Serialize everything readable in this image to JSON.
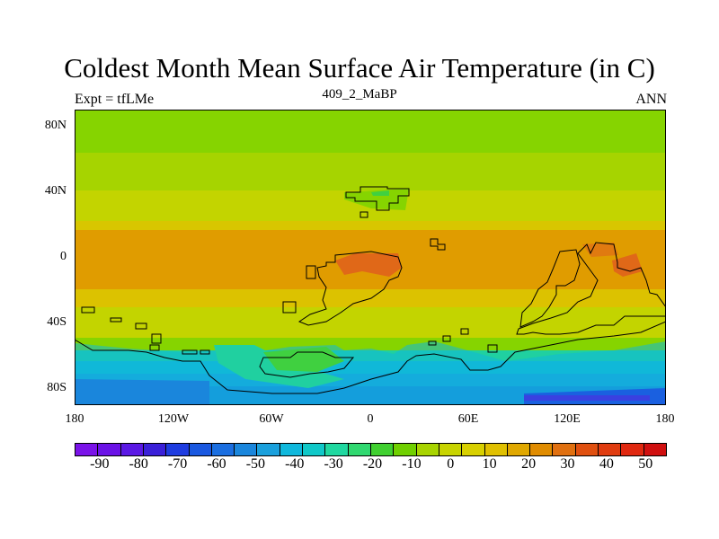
{
  "title": "Coldest Month Mean Surface Air Temperature (in C)",
  "left_string": "Expt = tfLMe",
  "center_string": "409_2_MaBP",
  "right_string": "ANN",
  "map": {
    "lat_ticks": [
      "80N",
      "40N",
      "0",
      "40S",
      "80S"
    ],
    "lon_ticks": [
      "180",
      "120W",
      "60W",
      "0",
      "60E",
      "120E",
      "180"
    ]
  },
  "colorbar": {
    "labels": [
      "-90",
      "-80",
      "-70",
      "-60",
      "-50",
      "-40",
      "-30",
      "-20",
      "-10",
      "0",
      "10",
      "20",
      "30",
      "40",
      "50"
    ],
    "colors": [
      "#7a13e8",
      "#6a12e6",
      "#5a18e4",
      "#3a20d8",
      "#1e3ce0",
      "#1a58e0",
      "#1a6ee0",
      "#1a86dc",
      "#1aa0dc",
      "#10b8dc",
      "#10c8c8",
      "#20d8a0",
      "#30d870",
      "#40d030",
      "#70d000",
      "#a8d400",
      "#c8d400",
      "#d8d000",
      "#e0c000",
      "#e0a800",
      "#e08c00",
      "#e07010",
      "#e05010",
      "#e03c10",
      "#e02810",
      "#d01010"
    ]
  },
  "colors": {
    "zone_0_10": "#86d400",
    "zone_10_20": "#c3d400",
    "zone_20_30": "#dcc200",
    "zone_30_40": "#e09c00",
    "zone_40_50": "#e06818",
    "zone_m10_0": "#40d040",
    "zone_m20_m10": "#20d0a0",
    "zone_m30_m20": "#10b8d8",
    "zone_m40_m30": "#1a9ee0",
    "zone_m50_m40": "#1a7ee0",
    "zone_m60_m50": "#1a60e0"
  }
}
